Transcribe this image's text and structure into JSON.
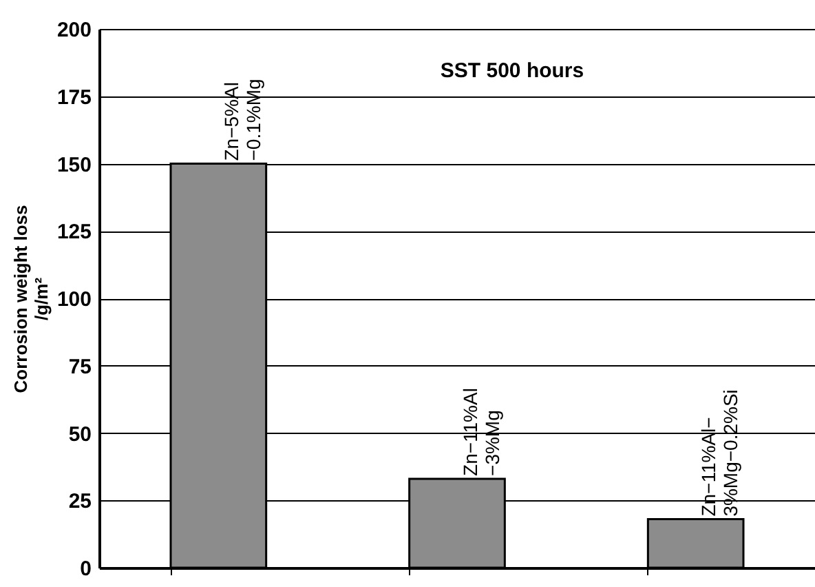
{
  "chart_data": {
    "type": "bar",
    "ylabel": "Corrosion weight loss\n/g/m²",
    "annotations": [
      "SST 500 hours"
    ],
    "categories": [
      "Zn−5%Al\n−0.1%Mg",
      "Zn−11%Al\n−3%Mg",
      "Zn−11%Al−\n3%Mg−0.2%Si"
    ],
    "values": [
      150,
      33,
      18
    ],
    "color": "#8c8c8c",
    "ylim": [
      0,
      200
    ],
    "yticks": [
      0,
      25,
      50,
      75,
      100,
      125,
      150,
      175,
      200
    ],
    "grid": "y"
  }
}
